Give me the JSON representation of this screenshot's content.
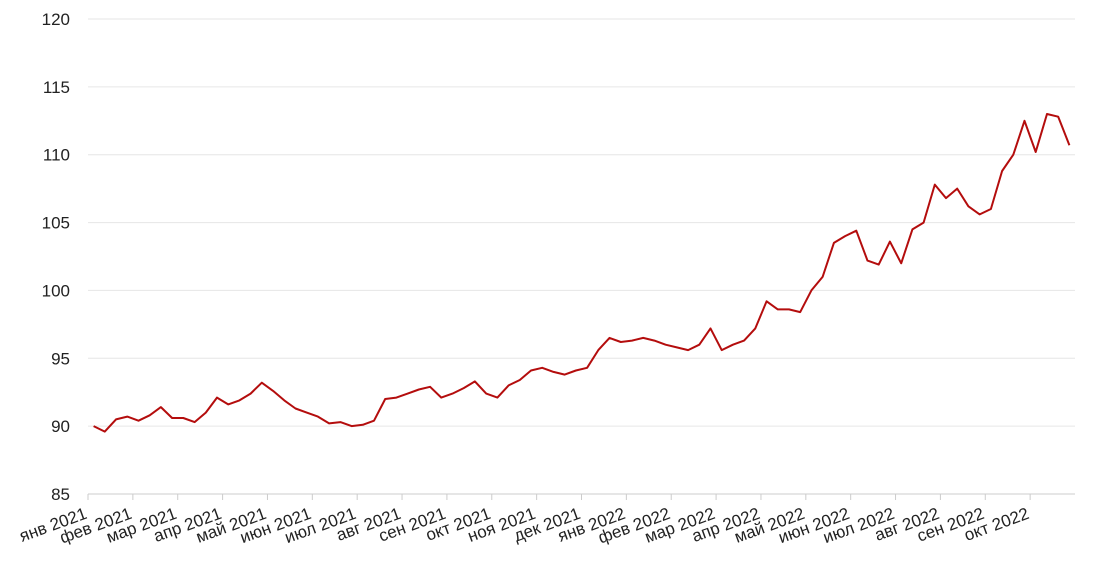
{
  "chart_data": {
    "type": "line",
    "xticks": [
      "янв 2021",
      "фев 2021",
      "мар 2021",
      "апр 2021",
      "май 2021",
      "июн 2021",
      "июл 2021",
      "авг 2021",
      "сен 2021",
      "окт 2021",
      "ноя 2021",
      "дек 2021",
      "янв 2022",
      "фев 2022",
      "мар 2022",
      "апр 2022",
      "май 2022",
      "июн 2022",
      "июл 2022",
      "авг 2022",
      "сен 2022",
      "окт 2022"
    ],
    "x": [
      "янв 2021",
      "янв 2021",
      "янв 2021",
      "янв 2021",
      "фев 2021",
      "фев 2021",
      "фев 2021",
      "фев 2021",
      "мар 2021",
      "мар 2021",
      "мар 2021",
      "мар 2021",
      "апр 2021",
      "апр 2021",
      "апр 2021",
      "апр 2021",
      "май 2021",
      "май 2021",
      "май 2021",
      "май 2021",
      "июн 2021",
      "июн 2021",
      "июн 2021",
      "июн 2021",
      "июл 2021",
      "июл 2021",
      "июл 2021",
      "июл 2021",
      "авг 2021",
      "авг 2021",
      "авг 2021",
      "авг 2021",
      "сен 2021",
      "сен 2021",
      "сен 2021",
      "сен 2021",
      "окт 2021",
      "окт 2021",
      "окт 2021",
      "окт 2021",
      "ноя 2021",
      "ноя 2021",
      "ноя 2021",
      "ноя 2021",
      "дек 2021",
      "дек 2021",
      "дек 2021",
      "дек 2021",
      "янв 2022",
      "янв 2022",
      "янв 2022",
      "янв 2022",
      "фев 2022",
      "фев 2022",
      "фев 2022",
      "фев 2022",
      "мар 2022",
      "мар 2022",
      "мар 2022",
      "мар 2022",
      "апр 2022",
      "апр 2022",
      "апр 2022",
      "апр 2022",
      "май 2022",
      "май 2022",
      "май 2022",
      "май 2022",
      "июн 2022",
      "июн 2022",
      "июн 2022",
      "июн 2022",
      "июл 2022",
      "июл 2022",
      "июл 2022",
      "июл 2022",
      "авг 2022",
      "авг 2022",
      "авг 2022",
      "авг 2022",
      "сен 2022",
      "сен 2022",
      "сен 2022",
      "сен 2022",
      "окт 2022",
      "окт 2022",
      "окт 2022",
      "окт 2022"
    ],
    "series": [
      {
        "color": "#b40d0d",
        "values": [
          90.0,
          89.6,
          90.5,
          90.7,
          90.4,
          90.8,
          91.4,
          90.6,
          90.6,
          90.3,
          91.0,
          92.1,
          91.6,
          91.9,
          92.4,
          93.2,
          92.6,
          91.9,
          91.3,
          91.0,
          90.7,
          90.2,
          90.3,
          90.0,
          90.1,
          90.4,
          92.0,
          92.1,
          92.4,
          92.7,
          92.9,
          92.1,
          92.4,
          92.8,
          93.3,
          92.4,
          92.1,
          93.0,
          93.4,
          94.1,
          94.3,
          94.0,
          93.8,
          94.1,
          94.3,
          95.6,
          96.5,
          96.2,
          96.3,
          96.5,
          96.3,
          96.0,
          95.8,
          95.6,
          96.0,
          97.2,
          95.6,
          96.0,
          96.3,
          97.2,
          99.2,
          98.6,
          98.6,
          98.4,
          100.0,
          101.0,
          103.5,
          104.0,
          104.4,
          102.2,
          101.9,
          103.6,
          102.0,
          104.5,
          105.0,
          107.8,
          106.8,
          107.5,
          106.2,
          105.6,
          106.0,
          108.8,
          110.0,
          112.5,
          110.2,
          113.0,
          112.8,
          110.7
        ]
      }
    ],
    "ylim": [
      85,
      120
    ],
    "yticks": [
      85,
      90,
      95,
      100,
      105,
      110,
      115,
      120
    ],
    "grid": true
  }
}
